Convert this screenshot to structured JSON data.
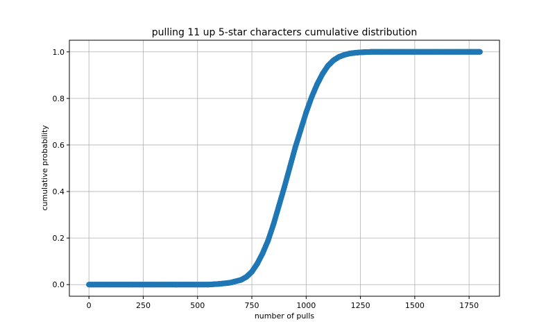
{
  "chart_data": {
    "type": "scatter",
    "title": "pulling 11 up 5-star characters cumulative distribution",
    "xlabel": "number of pulls",
    "ylabel": "cumulative probability",
    "xlim": [
      -90,
      1890
    ],
    "ylim": [
      -0.05,
      1.05
    ],
    "xticks": [
      0,
      250,
      500,
      750,
      1000,
      1250,
      1500,
      1750
    ],
    "xtick_labels": [
      "0",
      "250",
      "500",
      "750",
      "1000",
      "1250",
      "1500",
      "1750"
    ],
    "yticks": [
      0.0,
      0.2,
      0.4,
      0.6,
      0.8,
      1.0
    ],
    "ytick_labels": [
      "0.0",
      "0.2",
      "0.4",
      "0.6",
      "0.8",
      "1.0"
    ],
    "grid": true,
    "legend": "none",
    "series": [
      {
        "color": "#1f77b4",
        "x": [
          0,
          100,
          200,
          300,
          400,
          500,
          550,
          600,
          650,
          700,
          725,
          750,
          775,
          800,
          825,
          850,
          875,
          900,
          925,
          950,
          975,
          1000,
          1025,
          1050,
          1075,
          1100,
          1125,
          1150,
          1175,
          1200,
          1225,
          1250,
          1275,
          1300,
          1325,
          1350,
          1400,
          1500,
          1600,
          1700,
          1800
        ],
        "y": [
          0.0,
          0.0,
          0.0,
          0.0,
          0.0,
          0.0,
          0.0,
          0.003,
          0.008,
          0.02,
          0.033,
          0.055,
          0.09,
          0.135,
          0.19,
          0.26,
          0.34,
          0.42,
          0.505,
          0.59,
          0.665,
          0.74,
          0.805,
          0.86,
          0.905,
          0.94,
          0.963,
          0.978,
          0.987,
          0.993,
          0.996,
          0.998,
          0.999,
          1.0,
          1.0,
          1.0,
          1.0,
          1.0,
          1.0,
          1.0,
          1.0
        ]
      }
    ]
  }
}
